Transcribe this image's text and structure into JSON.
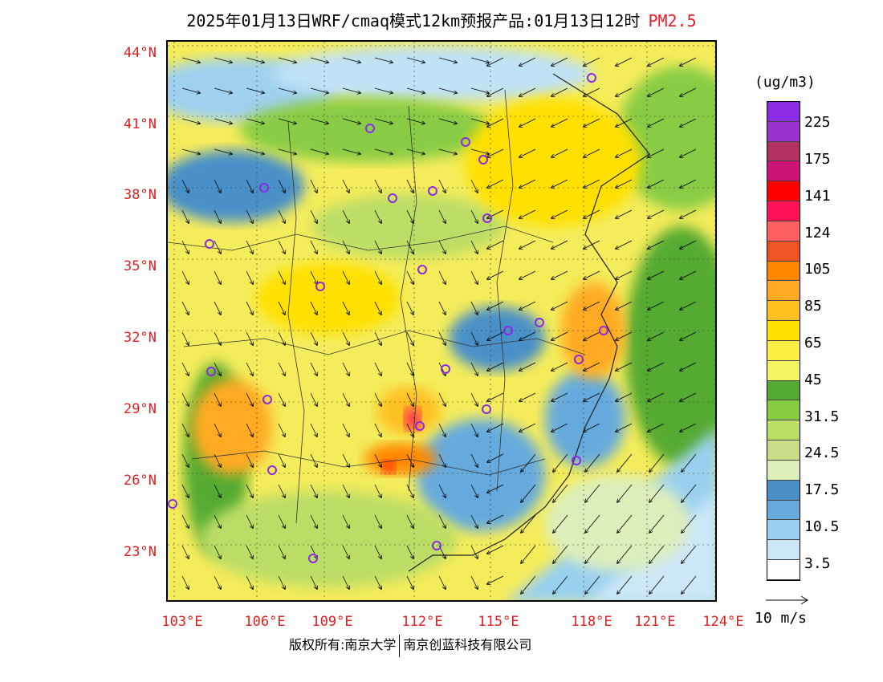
{
  "title": {
    "main": "2025年01月13日WRF/cmaq模式12km预报产品:01月13日12时",
    "species": "PM2.5",
    "species_color": "#e8202a"
  },
  "axes": {
    "lat_labels": [
      "44°N",
      "41°N",
      "38°N",
      "35°N",
      "32°N",
      "29°N",
      "26°N",
      "23°N"
    ],
    "lon_labels": [
      "103°E",
      "106°E",
      "109°E",
      "112°E",
      "115°E",
      "118°E",
      "121°E",
      "124°E"
    ],
    "label_color": "#e02020"
  },
  "legend": {
    "unit": "(ug/m3)",
    "colors": [
      "#8a2be2",
      "#9932cc",
      "#b03060",
      "#cc1177",
      "#ff0000",
      "#ff1155",
      "#ff6060",
      "#ee5522",
      "#ff8800",
      "#ffaa22",
      "#ffc020",
      "#ffe000",
      "#ffee44",
      "#f4f460",
      "#55aa33",
      "#88cc44",
      "#bbdd66",
      "#ccdd88",
      "#ddeebb",
      "#4a90c8",
      "#66aadd",
      "#99d0f0",
      "#cce8f8",
      "#ffffff"
    ],
    "labels": [
      "225",
      "175",
      "141",
      "124",
      "105",
      "85",
      "65",
      "45",
      "31.5",
      "24.5",
      "17.5",
      "10.5",
      "3.5"
    ]
  },
  "wind_vector": {
    "label": "10 m/s"
  },
  "footer": {
    "copyright": "版权所有:南京大学",
    "company": "南京创蓝科技有限公司"
  }
}
